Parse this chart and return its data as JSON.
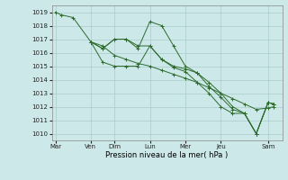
{
  "xlabel": "Pression niveau de la mer( hPa )",
  "bg_color": "#cce8e8",
  "grid_color": "#aacccc",
  "line_color": "#2d6b2d",
  "ylim": [
    1009.5,
    1019.5
  ],
  "yticks": [
    1010,
    1011,
    1012,
    1013,
    1014,
    1015,
    1016,
    1017,
    1018,
    1019
  ],
  "xtick_labels": [
    "Mar",
    "Ven",
    "Dim",
    "Lun",
    "Mer",
    "Jeu",
    "Sam"
  ],
  "xtick_positions": [
    0,
    3,
    5,
    8,
    11,
    14,
    18
  ],
  "xlim": [
    -0.3,
    19.2
  ],
  "series": {
    "line1": {
      "x": [
        0,
        0.5,
        1.5,
        3,
        4,
        5,
        6,
        7,
        8,
        9,
        10,
        11,
        12,
        13,
        14,
        15,
        16,
        17,
        18,
        18.5
      ],
      "y": [
        1019.0,
        1018.8,
        1018.6,
        1016.8,
        1016.5,
        1015.8,
        1015.5,
        1015.2,
        1015.0,
        1014.7,
        1014.4,
        1014.1,
        1013.8,
        1013.4,
        1013.0,
        1012.6,
        1012.2,
        1011.8,
        1011.9,
        1012.0
      ]
    },
    "line2": {
      "x": [
        3,
        4,
        5,
        6,
        7,
        8,
        9,
        10,
        11,
        12,
        13,
        14,
        15,
        16,
        17,
        18,
        18.5
      ],
      "y": [
        1016.8,
        1016.3,
        1017.0,
        1017.0,
        1016.3,
        1018.3,
        1018.0,
        1016.5,
        1015.0,
        1014.5,
        1013.5,
        1012.7,
        1011.8,
        1011.5,
        1010.0,
        1012.3,
        1012.2
      ]
    },
    "line3": {
      "x": [
        3,
        4,
        5,
        6,
        7,
        8,
        9,
        10,
        11,
        12,
        13,
        14,
        15,
        16,
        17,
        18,
        18.5
      ],
      "y": [
        1016.8,
        1016.3,
        1017.0,
        1017.0,
        1016.5,
        1016.5,
        1015.5,
        1015.0,
        1014.8,
        1014.5,
        1013.8,
        1013.0,
        1012.0,
        1011.5,
        1010.0,
        1012.3,
        1012.2
      ]
    },
    "line4": {
      "x": [
        3,
        4,
        5,
        6,
        7,
        8,
        9,
        10,
        11,
        12,
        13,
        14,
        15,
        16,
        17,
        18,
        18.5
      ],
      "y": [
        1016.8,
        1015.3,
        1015.0,
        1015.0,
        1015.0,
        1016.5,
        1015.5,
        1014.9,
        1014.6,
        1013.8,
        1013.0,
        1012.0,
        1011.5,
        1011.5,
        1010.0,
        1012.3,
        1012.2
      ]
    }
  }
}
